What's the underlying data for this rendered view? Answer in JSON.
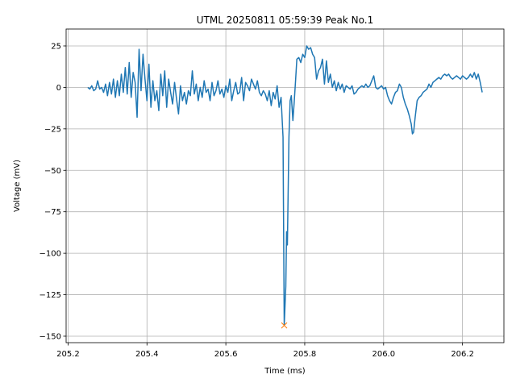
{
  "chart_data": {
    "type": "line",
    "title": "UTML 20250811 05:59:39 Peak No.1",
    "x_label": "Time (ms)",
    "y_label": "Voltage (mV)",
    "grid": true,
    "xlim": [
      205.195,
      206.305
    ],
    "ylim": [
      -153.9,
      35.2
    ],
    "xticks": [
      205.2,
      205.4,
      205.6,
      205.8,
      {
        "value": 206,
        "label": "206.0"
      },
      206.2
    ],
    "yticks": [
      {
        "value": -150,
        "label": "−150"
      },
      {
        "value": -125,
        "label": "−125"
      },
      {
        "value": -100,
        "label": "−100"
      },
      {
        "value": -75,
        "label": "−75"
      },
      {
        "value": -50,
        "label": "−50"
      },
      {
        "value": -25,
        "label": "−25"
      },
      0,
      25
    ],
    "series": [
      {
        "color": "#1f77b4",
        "x": [
          205.25,
          205.255,
          205.26,
          205.265,
          205.27,
          205.275,
          205.28,
          205.285,
          205.29,
          205.295,
          205.3,
          205.305,
          205.31,
          205.315,
          205.32,
          205.325,
          205.33,
          205.335,
          205.34,
          205.345,
          205.35,
          205.355,
          205.36,
          205.365,
          205.37,
          205.375,
          205.38,
          205.385,
          205.39,
          205.395,
          205.4,
          205.405,
          205.41,
          205.415,
          205.42,
          205.425,
          205.43,
          205.435,
          205.44,
          205.445,
          205.45,
          205.455,
          205.46,
          205.465,
          205.47,
          205.475,
          205.48,
          205.485,
          205.49,
          205.495,
          205.5,
          205.505,
          205.51,
          205.515,
          205.52,
          205.525,
          205.53,
          205.535,
          205.54,
          205.545,
          205.55,
          205.555,
          205.56,
          205.565,
          205.57,
          205.575,
          205.58,
          205.585,
          205.59,
          205.595,
          205.6,
          205.605,
          205.61,
          205.615,
          205.62,
          205.625,
          205.63,
          205.635,
          205.64,
          205.645,
          205.65,
          205.655,
          205.66,
          205.665,
          205.67,
          205.675,
          205.68,
          205.685,
          205.69,
          205.695,
          205.7,
          205.705,
          205.71,
          205.715,
          205.72,
          205.725,
          205.73,
          205.735,
          205.74,
          205.745,
          205.748,
          205.752,
          205.754,
          205.756,
          205.76,
          205.763,
          205.766,
          205.77,
          205.773,
          205.777,
          205.78,
          205.785,
          205.79,
          205.795,
          205.8,
          205.805,
          205.81,
          205.815,
          205.82,
          205.825,
          205.83,
          205.835,
          205.84,
          205.845,
          205.85,
          205.855,
          205.86,
          205.865,
          205.87,
          205.875,
          205.88,
          205.885,
          205.89,
          205.895,
          205.9,
          205.905,
          205.91,
          205.915,
          205.92,
          205.925,
          205.93,
          205.935,
          205.94,
          205.945,
          205.95,
          205.955,
          205.96,
          205.965,
          205.97,
          205.975,
          205.98,
          205.985,
          205.99,
          205.995,
          206,
          206.005,
          206.01,
          206.015,
          206.02,
          206.025,
          206.03,
          206.035,
          206.04,
          206.045,
          206.05,
          206.055,
          206.06,
          206.065,
          206.07,
          206.073,
          206.076,
          206.08,
          206.085,
          206.09,
          206.095,
          206.1,
          206.105,
          206.11,
          206.115,
          206.12,
          206.125,
          206.13,
          206.135,
          206.14,
          206.145,
          206.15,
          206.155,
          206.16,
          206.165,
          206.17,
          206.175,
          206.18,
          206.185,
          206.19,
          206.195,
          206.2,
          206.205,
          206.21,
          206.215,
          206.22,
          206.225,
          206.23,
          206.235,
          206.24,
          206.245,
          206.25
        ],
        "values": [
          0,
          -1,
          1,
          -2,
          -1,
          4,
          -1,
          0,
          -3,
          2,
          -5,
          3,
          -4,
          5,
          -6,
          4,
          -5,
          8,
          -3,
          12,
          -4,
          15,
          -6,
          9,
          3,
          -18,
          23,
          -2,
          20,
          5,
          -8,
          14,
          -12,
          4,
          -8,
          -2,
          -14,
          8,
          -5,
          10,
          -12,
          5,
          -3,
          -10,
          3,
          -7,
          -16,
          1,
          -8,
          -3,
          -10,
          -2,
          -5,
          10,
          -4,
          2,
          -8,
          0,
          -6,
          4,
          -3,
          -1,
          -8,
          3,
          -5,
          -2,
          4,
          -4,
          -1,
          -6,
          1,
          -3,
          5,
          -8,
          -2,
          3,
          -4,
          -3,
          6,
          -8,
          3,
          1,
          -2,
          5,
          2,
          -1,
          4,
          -3,
          -5,
          -2,
          -4,
          -8,
          -2,
          -11,
          -3,
          -7,
          1,
          -12,
          -6,
          -30,
          -143.5,
          -120,
          -87,
          -95,
          -30,
          -8,
          -5,
          -20,
          -10,
          5,
          17,
          18,
          15,
          20,
          18,
          25,
          23,
          24,
          20,
          18,
          5,
          10,
          12,
          17,
          2,
          16,
          3,
          8,
          0,
          4,
          -2,
          3,
          -1,
          2,
          -3,
          1,
          0,
          -1,
          1,
          -4,
          -3,
          -1,
          0,
          1,
          0,
          2,
          0,
          1,
          4,
          7,
          0,
          -1,
          0,
          1,
          -1,
          0,
          -5,
          -8,
          -10,
          -6,
          -3,
          -2,
          2,
          0,
          -6,
          -10,
          -13,
          -17,
          -22,
          -28,
          -27,
          -18,
          -8,
          -6,
          -5,
          -3,
          -2,
          -1,
          2,
          0,
          3,
          4,
          5,
          6,
          5,
          7,
          8,
          7,
          8,
          6,
          5,
          6,
          7,
          6,
          5,
          7,
          6,
          5,
          6,
          8,
          6,
          9,
          5,
          8,
          3,
          -3
        ]
      },
      {
        "color": "#ff7f0e",
        "marker": "x",
        "x": [
          205.748
        ],
        "values": [
          -143.5
        ]
      }
    ]
  }
}
